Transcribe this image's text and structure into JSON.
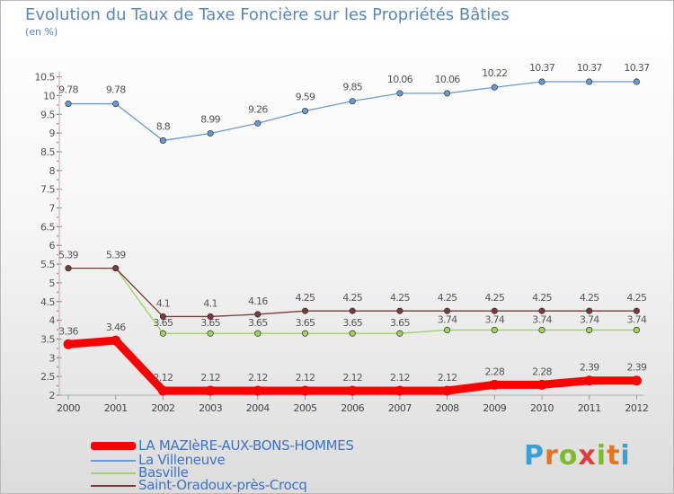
{
  "header": {
    "title": "Evolution du Taux de Taxe Foncière sur les Propriétés Bâties",
    "unit": "(en %)"
  },
  "logo": {
    "text": "Proxiti",
    "colors": [
      "#3aa0d8",
      "#e8731f",
      "#7cbb2a",
      "#e23a3a"
    ]
  },
  "chart_data": {
    "type": "line",
    "title": "Evolution du Taux de Taxe Foncière sur les Propriétés Bâties",
    "ylabel": "(en %)",
    "xlabel": "",
    "x": [
      "2000",
      "2001",
      "2002",
      "2003",
      "2004",
      "2005",
      "2006",
      "2007",
      "2008",
      "2009",
      "2010",
      "2011",
      "2012"
    ],
    "ylim": [
      2,
      10.5
    ],
    "yticks": [
      "2",
      "2.5",
      "3",
      "3.5",
      "4",
      "4.5",
      "5",
      "5.5",
      "6",
      "6.5",
      "7",
      "7.5",
      "8",
      "8.5",
      "9",
      "9.5",
      "10",
      "10.5"
    ],
    "grid": false,
    "legend_position": "bottom-left",
    "series": [
      {
        "name": "LA MAZIèRE-AUX-BONS-HOMMES",
        "color": "#ff0000",
        "values": [
          3.36,
          3.46,
          2.12,
          2.12,
          2.12,
          2.12,
          2.12,
          2.12,
          2.12,
          2.28,
          2.28,
          2.39,
          2.39
        ],
        "labels": [
          "3.36",
          "3.46",
          "2.12",
          "2.12",
          "2.12",
          "2.12",
          "2.12",
          "2.12",
          "2.12",
          "2.28",
          "2.28",
          "2.39",
          "2.39"
        ]
      },
      {
        "name": "La Villeneuve",
        "color": "#6a9bd0",
        "values": [
          9.78,
          9.78,
          8.8,
          8.99,
          9.26,
          9.59,
          9.85,
          10.06,
          10.06,
          10.22,
          10.37,
          10.37,
          10.37
        ],
        "labels": [
          "9.78",
          "9.78",
          "8.8",
          "8.99",
          "9.26",
          "9.59",
          "9.85",
          "10.06",
          "10.06",
          "10.22",
          "10.37",
          "10.37",
          "10.37"
        ]
      },
      {
        "name": "Basville",
        "color": "#9dd45a",
        "values": [
          5.39,
          5.39,
          3.65,
          3.65,
          3.65,
          3.65,
          3.65,
          3.65,
          3.74,
          3.74,
          3.74,
          3.74,
          3.74
        ],
        "labels": [
          "",
          "",
          "3.65",
          "3.65",
          "3.65",
          "3.65",
          "3.65",
          "3.65",
          "3.74",
          "3.74",
          "3.74",
          "3.74",
          "3.74"
        ]
      },
      {
        "name": "Saint-Oradoux-près-Crocq",
        "color": "#7a3a3a",
        "values": [
          5.39,
          5.39,
          4.1,
          4.1,
          4.16,
          4.25,
          4.25,
          4.25,
          4.25,
          4.25,
          4.25,
          4.25,
          4.25
        ],
        "labels": [
          "5.39",
          "5.39",
          "4.1",
          "4.1",
          "4.16",
          "4.25",
          "4.25",
          "4.25",
          "4.25",
          "4.25",
          "4.25",
          "4.25",
          "4.25"
        ]
      }
    ]
  }
}
